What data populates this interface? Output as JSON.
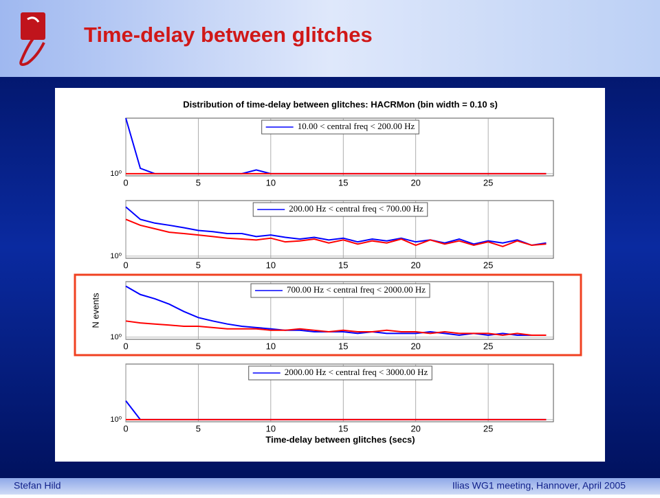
{
  "header": {
    "title": "Time-delay between glitches"
  },
  "footer": {
    "left": "Stefan Hild",
    "right": "Ilias WG1 meeting, Hannover, April 2005"
  },
  "chart_data": [
    {
      "type": "line",
      "title": "Distribution of time-delay between glitches: HACRMon (bin width =   0.10 s)",
      "log_y": true,
      "grid": true,
      "x": [
        0,
        1,
        2,
        3,
        4,
        5,
        6,
        7,
        8,
        9,
        10,
        11,
        12,
        13,
        14,
        15,
        16,
        17,
        18,
        19,
        20,
        21,
        22,
        23,
        24,
        25,
        26,
        27,
        28,
        29
      ],
      "xlim": [
        0,
        29.5
      ],
      "xticks": [
        0,
        5,
        10,
        15,
        20,
        25
      ],
      "ylim": [
        0.9,
        15
      ],
      "yticks": [
        {
          "value": 1,
          "label": "10⁰"
        }
      ],
      "series": [
        {
          "name": "10.00 < central freq < 200.00 Hz",
          "color": "#0000ff",
          "values": [
            15,
            1.3,
            1,
            1,
            1,
            1,
            1,
            1,
            1,
            1.2,
            1,
            1,
            1,
            1,
            1,
            1,
            1,
            1,
            1,
            1,
            1,
            1,
            1,
            1,
            1,
            1,
            1,
            1,
            1,
            1
          ]
        },
        {
          "color": "#ff0000",
          "values": [
            1,
            1,
            1,
            1,
            1,
            1,
            1,
            1,
            1,
            1,
            1,
            1,
            1,
            1,
            1,
            1,
            1,
            1,
            1,
            1,
            1,
            1,
            1,
            1,
            1,
            1,
            1,
            1,
            1,
            1
          ]
        }
      ]
    },
    {
      "type": "line",
      "log_y": true,
      "grid": true,
      "x": [
        0,
        1,
        2,
        3,
        4,
        5,
        6,
        7,
        8,
        9,
        10,
        11,
        12,
        13,
        14,
        15,
        16,
        17,
        18,
        19,
        20,
        21,
        22,
        23,
        24,
        25,
        26,
        27,
        28,
        29
      ],
      "xlim": [
        0,
        29.5
      ],
      "xticks": [
        0,
        5,
        10,
        15,
        20,
        25
      ],
      "ylim": [
        0.9,
        15
      ],
      "yticks": [
        {
          "value": 1,
          "label": "10⁰"
        }
      ],
      "series": [
        {
          "name": "200.00 Hz < central freq < 700.00 Hz",
          "color": "#0000ff",
          "values": [
            11,
            6,
            5,
            4.5,
            4,
            3.5,
            3.3,
            3,
            3,
            2.6,
            2.8,
            2.5,
            2.3,
            2.5,
            2.2,
            2.4,
            2,
            2.3,
            2.1,
            2.4,
            2,
            2.2,
            1.9,
            2.3,
            1.8,
            2.1,
            1.9,
            2.2,
            1.7,
            1.9
          ]
        },
        {
          "color": "#ff0000",
          "values": [
            6,
            4.5,
            3.8,
            3.2,
            3,
            2.8,
            2.6,
            2.4,
            2.3,
            2.2,
            2.4,
            2,
            2.1,
            2.3,
            1.9,
            2.2,
            1.8,
            2.1,
            1.9,
            2.3,
            1.7,
            2.2,
            1.8,
            2.1,
            1.7,
            2,
            1.6,
            2.1,
            1.7,
            1.8
          ]
        }
      ]
    },
    {
      "type": "line",
      "ylabel": "N events",
      "log_y": true,
      "grid": true,
      "x": [
        0,
        1,
        2,
        3,
        4,
        5,
        6,
        7,
        8,
        9,
        10,
        11,
        12,
        13,
        14,
        15,
        16,
        17,
        18,
        19,
        20,
        21,
        22,
        23,
        24,
        25,
        26,
        27,
        28,
        29
      ],
      "xlim": [
        0,
        29.5
      ],
      "xticks": [
        0,
        5,
        10,
        15,
        20,
        25
      ],
      "ylim": [
        0.9,
        15
      ],
      "yticks": [
        {
          "value": 1,
          "label": "10⁰"
        }
      ],
      "series": [
        {
          "name": "700.00 Hz  < central freq < 2000.00 Hz",
          "color": "#0000ff",
          "values": [
            12,
            8,
            6.5,
            5,
            3.5,
            2.6,
            2.2,
            1.9,
            1.7,
            1.6,
            1.5,
            1.4,
            1.4,
            1.3,
            1.3,
            1.3,
            1.2,
            1.3,
            1.2,
            1.2,
            1.2,
            1.3,
            1.2,
            1.1,
            1.2,
            1.1,
            1.2,
            1.1,
            1.1,
            1.1
          ]
        },
        {
          "color": "#ff0000",
          "values": [
            2.2,
            2,
            1.9,
            1.8,
            1.7,
            1.7,
            1.6,
            1.5,
            1.5,
            1.5,
            1.4,
            1.4,
            1.5,
            1.4,
            1.3,
            1.4,
            1.3,
            1.3,
            1.4,
            1.3,
            1.3,
            1.2,
            1.3,
            1.2,
            1.2,
            1.2,
            1.1,
            1.2,
            1.1,
            1.1
          ]
        }
      ]
    },
    {
      "type": "line",
      "xlabel": "Time-delay between glitches (secs)",
      "log_y": true,
      "grid": true,
      "x": [
        0,
        1,
        2,
        3,
        4,
        5,
        6,
        7,
        8,
        9,
        10,
        11,
        12,
        13,
        14,
        15,
        16,
        17,
        18,
        19,
        20,
        21,
        22,
        23,
        24,
        25,
        26,
        27,
        28,
        29
      ],
      "xlim": [
        0,
        29.5
      ],
      "xticks": [
        0,
        5,
        10,
        15,
        20,
        25
      ],
      "ylim": [
        0.9,
        15
      ],
      "yticks": [
        {
          "value": 1,
          "label": "10⁰"
        }
      ],
      "series": [
        {
          "name": "2000.00 Hz  < central freq < 3000.00 Hz",
          "color": "#0000ff",
          "values": [
            2.5,
            1,
            1,
            1,
            1,
            1,
            1,
            1,
            1,
            1,
            1,
            1,
            1,
            1,
            1,
            1,
            1,
            1,
            1,
            1,
            1,
            1,
            1,
            1,
            1,
            1,
            1,
            1,
            1,
            1
          ]
        },
        {
          "color": "#ff0000",
          "values": [
            1,
            1,
            1,
            1,
            1,
            1,
            1,
            1,
            1,
            1,
            1,
            1,
            1,
            1,
            1,
            1,
            1,
            1,
            1,
            1,
            1,
            1,
            1,
            1,
            1,
            1,
            1,
            1,
            1,
            1
          ]
        }
      ]
    }
  ]
}
